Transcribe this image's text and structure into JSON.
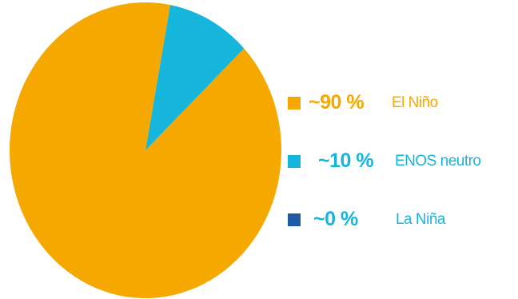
{
  "chart_data": {
    "type": "pie",
    "title": "",
    "legend_position": "right",
    "slices": [
      {
        "label": "El Niño",
        "value_text": "~90 %",
        "value": 90,
        "color": "#F5A800"
      },
      {
        "label": "ENOS neutro",
        "value_text": "~10 %",
        "value": 10,
        "color": "#16B5DC"
      },
      {
        "label": "La Niña",
        "value_text": "~0 %",
        "value": 0,
        "color": "#1F5AA6"
      }
    ]
  }
}
